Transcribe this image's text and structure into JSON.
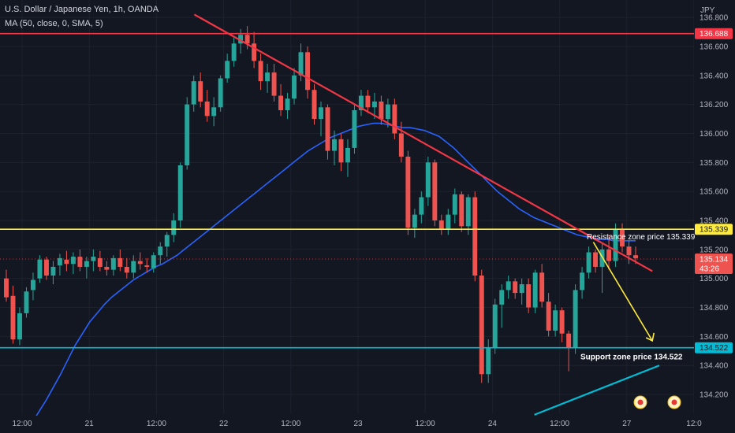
{
  "header": {
    "symbol": "U.S. Dollar / Japanese Yen, 1h, OANDA",
    "indicator": "MA (50, close, 0, SMA, 5)",
    "currency": "JPY"
  },
  "colors": {
    "background": "#131722",
    "grid": "#1e222d",
    "bull": "#26a69a",
    "bear": "#ef5350",
    "ma": "#2962ff",
    "resistance": "#ffeb3b",
    "support": "#00bcd4",
    "top_line": "#f23645",
    "trendline": "#f23645",
    "arrow": "#ffeb3b",
    "uptrend": "#00bcd4"
  },
  "chart_data": {
    "type": "candlestick",
    "ylim": [
      134.07,
      136.92
    ],
    "yticks": [
      136.8,
      136.6,
      136.4,
      136.2,
      136.0,
      135.8,
      135.6,
      135.4,
      135.2,
      135.0,
      134.8,
      134.6,
      134.4,
      134.2
    ],
    "ytick_labels": [
      "136.800",
      "136.600",
      "136.400",
      "136.200",
      "136.000",
      "135.800",
      "135.600",
      "135.400",
      "135.200",
      "135.000",
      "134.800",
      "134.600",
      "134.400",
      "134.200"
    ],
    "xticks": [
      "12:00",
      "21",
      "12:00",
      "22",
      "12:00",
      "23",
      "12:00",
      "24",
      "12:00",
      "27",
      "12:0"
    ],
    "levels": {
      "top": {
        "price": 136.688,
        "label": "136.688"
      },
      "resistance": {
        "price": 135.339,
        "label": "135.339"
      },
      "support": {
        "price": 134.522,
        "label": "134.522"
      },
      "current": {
        "price": 135.134,
        "label": "135.134",
        "countdown": "43:26"
      }
    },
    "annotations": {
      "resistance": "Resistance zone price 135.339",
      "support": "Support zone price 134.522"
    },
    "candles": [
      [
        135.0,
        135.06,
        134.84,
        134.87
      ],
      [
        134.88,
        134.95,
        134.55,
        134.58
      ],
      [
        134.58,
        134.8,
        134.54,
        134.76
      ],
      [
        134.76,
        134.94,
        134.73,
        134.91
      ],
      [
        134.92,
        135.04,
        134.85,
        134.99
      ],
      [
        135.0,
        135.16,
        134.97,
        135.13
      ],
      [
        135.13,
        135.15,
        134.99,
        135.02
      ],
      [
        135.02,
        135.12,
        134.96,
        135.08
      ],
      [
        135.09,
        135.17,
        135.02,
        135.14
      ],
      [
        135.13,
        135.19,
        135.05,
        135.1
      ],
      [
        135.1,
        135.18,
        135.03,
        135.15
      ],
      [
        135.15,
        135.2,
        135.05,
        135.08
      ],
      [
        135.08,
        135.15,
        135.0,
        135.12
      ],
      [
        135.12,
        135.2,
        135.05,
        135.15
      ],
      [
        135.14,
        135.19,
        135.05,
        135.08
      ],
      [
        135.08,
        135.12,
        135.02,
        135.06
      ],
      [
        135.06,
        135.16,
        135.02,
        135.14
      ],
      [
        135.14,
        135.2,
        135.05,
        135.08
      ],
      [
        135.08,
        135.14,
        135.0,
        135.04
      ],
      [
        135.04,
        135.16,
        135.0,
        135.12
      ],
      [
        135.12,
        135.18,
        135.06,
        135.1
      ],
      [
        135.09,
        135.14,
        135.04,
        135.08
      ],
      [
        135.07,
        135.18,
        135.04,
        135.16
      ],
      [
        135.16,
        135.25,
        135.1,
        135.22
      ],
      [
        135.22,
        135.32,
        135.15,
        135.3
      ],
      [
        135.3,
        135.45,
        135.25,
        135.4
      ],
      [
        135.4,
        135.8,
        135.35,
        135.78
      ],
      [
        135.78,
        136.25,
        135.75,
        136.2
      ],
      [
        136.2,
        136.4,
        136.15,
        136.36
      ],
      [
        136.36,
        136.42,
        136.18,
        136.22
      ],
      [
        136.22,
        136.3,
        136.08,
        136.12
      ],
      [
        136.12,
        136.25,
        136.05,
        136.18
      ],
      [
        136.18,
        136.4,
        136.15,
        136.38
      ],
      [
        136.38,
        136.55,
        136.35,
        136.5
      ],
      [
        136.5,
        136.66,
        136.46,
        136.62
      ],
      [
        136.62,
        136.72,
        136.55,
        136.68
      ],
      [
        136.68,
        136.74,
        136.58,
        136.62
      ],
      [
        136.62,
        136.7,
        136.45,
        136.5
      ],
      [
        136.5,
        136.55,
        136.3,
        136.36
      ],
      [
        136.36,
        136.48,
        136.28,
        136.42
      ],
      [
        136.42,
        136.48,
        136.22,
        136.26
      ],
      [
        136.26,
        136.34,
        136.12,
        136.16
      ],
      [
        136.16,
        136.28,
        136.1,
        136.24
      ],
      [
        136.24,
        136.45,
        136.2,
        136.4
      ],
      [
        136.4,
        136.62,
        136.36,
        136.56
      ],
      [
        136.56,
        136.6,
        136.24,
        136.3
      ],
      [
        136.3,
        136.34,
        136.06,
        136.1
      ],
      [
        136.1,
        136.22,
        135.98,
        136.18
      ],
      [
        136.18,
        136.2,
        135.82,
        135.88
      ],
      [
        135.88,
        136.02,
        135.78,
        135.96
      ],
      [
        135.96,
        136.0,
        135.74,
        135.8
      ],
      [
        135.8,
        135.96,
        135.7,
        135.9
      ],
      [
        135.9,
        136.2,
        135.86,
        136.16
      ],
      [
        136.16,
        136.3,
        136.12,
        136.26
      ],
      [
        136.26,
        136.3,
        136.14,
        136.18
      ],
      [
        136.18,
        136.28,
        136.1,
        136.22
      ],
      [
        136.22,
        136.26,
        136.06,
        136.1
      ],
      [
        136.1,
        136.24,
        136.04,
        136.2
      ],
      [
        136.2,
        136.24,
        135.96,
        136.0
      ],
      [
        136.0,
        136.08,
        135.8,
        135.84
      ],
      [
        135.84,
        135.88,
        135.3,
        135.35
      ],
      [
        135.35,
        135.48,
        135.28,
        135.44
      ],
      [
        135.44,
        135.6,
        135.38,
        135.56
      ],
      [
        135.56,
        135.84,
        135.5,
        135.8
      ],
      [
        135.8,
        135.82,
        135.36,
        135.4
      ],
      [
        135.4,
        135.44,
        135.3,
        135.34
      ],
      [
        135.34,
        135.48,
        135.3,
        135.44
      ],
      [
        135.44,
        135.62,
        135.38,
        135.58
      ],
      [
        135.58,
        135.6,
        135.32,
        135.36
      ],
      [
        135.36,
        135.58,
        135.3,
        135.56
      ],
      [
        135.56,
        135.6,
        134.98,
        135.02
      ],
      [
        135.02,
        135.06,
        134.28,
        134.34
      ],
      [
        134.34,
        134.58,
        134.28,
        134.52
      ],
      [
        134.52,
        134.86,
        134.48,
        134.82
      ],
      [
        134.82,
        134.96,
        134.66,
        134.92
      ],
      [
        134.92,
        135.02,
        134.86,
        134.98
      ],
      [
        134.98,
        135.0,
        134.86,
        134.9
      ],
      [
        134.9,
        135.0,
        134.82,
        134.96
      ],
      [
        134.96,
        135.0,
        134.76,
        134.8
      ],
      [
        134.8,
        135.06,
        134.76,
        135.04
      ],
      [
        135.04,
        135.1,
        134.8,
        134.84
      ],
      [
        134.84,
        134.9,
        134.6,
        134.64
      ],
      [
        134.64,
        134.82,
        134.6,
        134.78
      ],
      [
        134.78,
        134.8,
        134.56,
        134.62
      ],
      [
        134.62,
        134.64,
        134.36,
        134.52
      ],
      [
        134.52,
        134.96,
        134.48,
        134.92
      ],
      [
        134.92,
        135.08,
        134.86,
        135.04
      ],
      [
        135.04,
        135.22,
        135.0,
        135.18
      ],
      [
        135.18,
        135.2,
        135.04,
        135.08
      ],
      [
        135.08,
        135.24,
        134.9,
        135.2
      ],
      [
        135.2,
        135.3,
        135.06,
        135.12
      ],
      [
        135.12,
        135.38,
        135.08,
        135.34
      ],
      [
        135.34,
        135.38,
        135.18,
        135.22
      ],
      [
        135.22,
        135.26,
        135.1,
        135.16
      ],
      [
        135.16,
        135.22,
        135.1,
        135.14
      ]
    ],
    "ma_series": [
      134.0,
      134.08,
      134.16,
      134.25,
      134.34,
      134.44,
      134.54,
      134.62,
      134.7,
      134.76,
      134.82,
      134.87,
      134.91,
      134.95,
      134.99,
      135.02,
      135.05,
      135.08,
      135.1,
      135.13,
      135.16,
      135.2,
      135.24,
      135.28,
      135.32,
      135.36,
      135.4,
      135.44,
      135.48,
      135.52,
      135.56,
      135.6,
      135.64,
      135.68,
      135.72,
      135.76,
      135.8,
      135.84,
      135.88,
      135.91,
      135.94,
      135.97,
      135.99,
      136.01,
      136.03,
      136.05,
      136.06,
      136.07,
      136.07,
      136.06,
      136.05,
      136.04,
      136.04,
      136.03,
      136.02,
      136.0,
      135.98,
      135.94,
      135.9,
      135.85,
      135.8,
      135.75,
      135.7,
      135.65,
      135.6,
      135.56,
      135.52,
      135.48,
      135.45,
      135.42,
      135.4,
      135.38,
      135.36,
      135.34,
      135.32,
      135.3,
      135.29,
      135.28,
      135.27,
      135.27,
      135.26,
      135.26,
      135.26,
      135.26
    ],
    "trendline": {
      "from": [
        0.28,
        136.82
      ],
      "to": [
        0.94,
        135.05
      ]
    },
    "uptrend": {
      "from": [
        0.77,
        134.06
      ],
      "to": [
        0.95,
        134.4
      ]
    },
    "arrow": {
      "from": [
        0.855,
        135.25
      ],
      "to": [
        0.94,
        134.57
      ]
    }
  }
}
